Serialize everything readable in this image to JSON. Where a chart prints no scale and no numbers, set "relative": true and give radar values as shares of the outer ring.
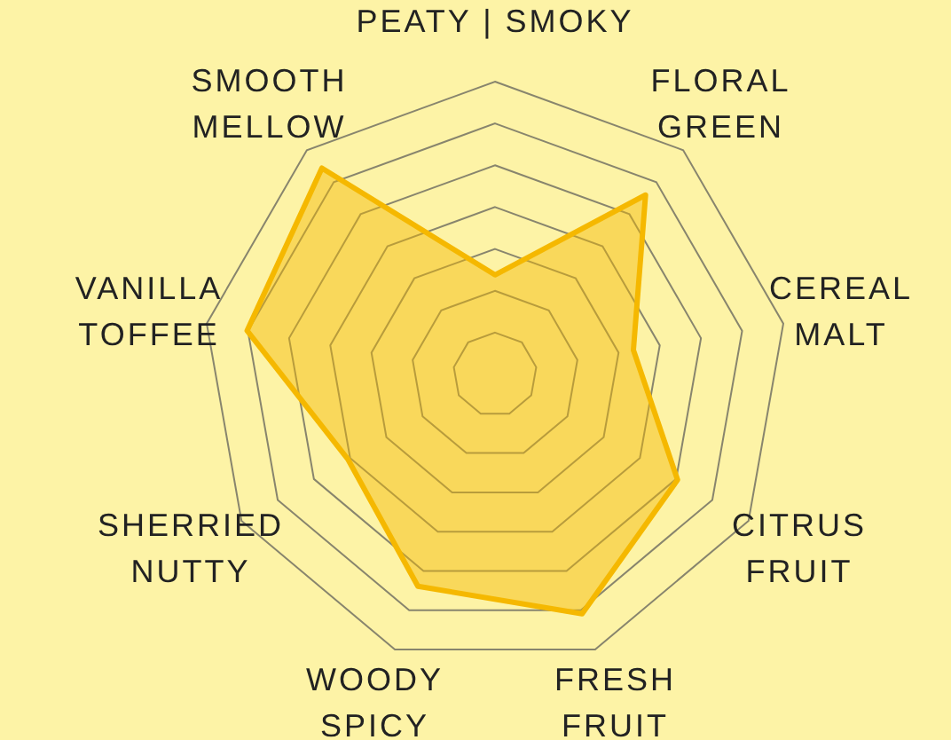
{
  "chart_data": {
    "type": "radar",
    "relative": true,
    "categories": [
      "PEATY | SMOKY",
      "FLORAL\nGREEN",
      "CEREAL\nMALT",
      "CITRUS\nFRUIT",
      "FRESH\nFRUIT",
      "WOODY\nSPICY",
      "SHERRIED\nNUTTY",
      "VANILLA\nTOFFEE",
      "SMOOTH\nMELLOW"
    ],
    "series": [
      {
        "color": "#f5b800",
        "values": [
          0.34,
          0.8,
          0.48,
          0.72,
          0.87,
          0.77,
          0.58,
          0.86,
          0.92
        ]
      }
    ],
    "grid": true,
    "legend": false
  }
}
